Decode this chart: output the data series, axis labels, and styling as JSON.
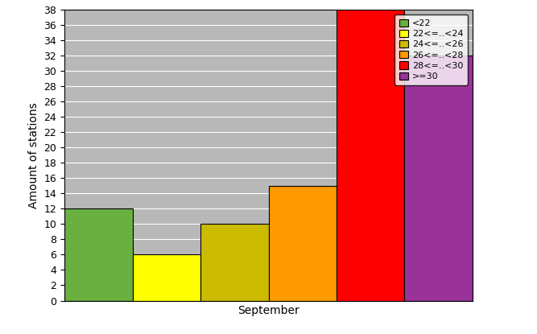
{
  "categories": [
    "<22",
    "22<=..<24",
    "24<=..<26",
    "26<=..<28",
    "28<=..<30",
    ">=30"
  ],
  "values": [
    12,
    6,
    10,
    15,
    38,
    32
  ],
  "bar_colors": [
    "#6ab040",
    "#ffff00",
    "#ccbb00",
    "#ff9900",
    "#ff0000",
    "#993399"
  ],
  "xlabel": "September",
  "ylabel": "Amount of stations",
  "ylim": [
    0,
    38
  ],
  "ytick_step": 2,
  "plot_bg_color": "#b8b8b8",
  "fig_bg_color": "#ffffff",
  "legend_labels": [
    "<22",
    "22<=..<24",
    "24<=..<26",
    "26<=..<28",
    "28<=..<30",
    ">=30"
  ],
  "axis_fontsize": 10,
  "tick_fontsize": 9,
  "legend_fontsize": 8,
  "grid_color": "#ffffff",
  "bar_edge_color": "#000000"
}
